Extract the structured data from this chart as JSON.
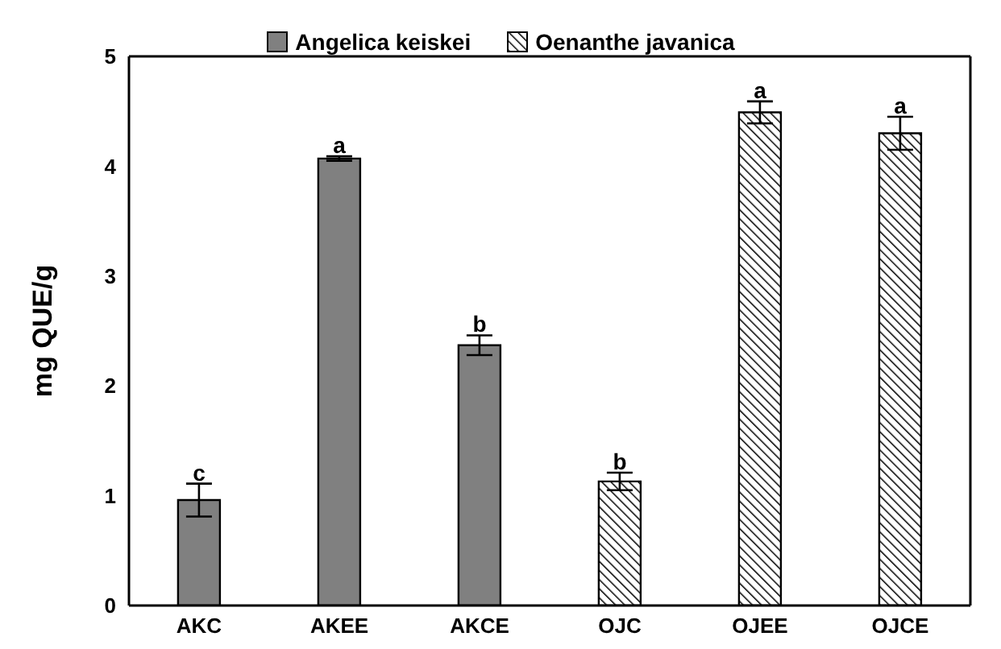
{
  "chart_data": {
    "type": "bar",
    "ylabel": "mg QUE/g",
    "categories": [
      "AKC",
      "AKEE",
      "AKCE",
      "OJC",
      "OJEE",
      "OJCE"
    ],
    "series": [
      {
        "name": "Angelica keiskei",
        "color": "#808080",
        "values": [
          0.96,
          4.07,
          2.37,
          null,
          null,
          null
        ],
        "errors": [
          0.15,
          0.02,
          0.09,
          null,
          null,
          null
        ]
      },
      {
        "name": "Oenanthe javanica",
        "color": "#000000",
        "values": [
          null,
          null,
          null,
          1.13,
          4.49,
          4.3
        ],
        "errors": [
          null,
          null,
          null,
          0.08,
          0.1,
          0.15
        ]
      }
    ],
    "ylim": [
      0,
      5
    ],
    "yticks": [
      0,
      1,
      2,
      3,
      4,
      5
    ],
    "grid": false,
    "legend": "top",
    "annotations": [
      {
        "text": "c",
        "x": "AKC",
        "y": 1.11
      },
      {
        "text": "a",
        "x": "AKEE",
        "y": 4.09
      },
      {
        "text": "b",
        "x": "AKCE",
        "y": 2.46
      },
      {
        "text": "b",
        "x": "OJC",
        "y": 1.21
      },
      {
        "text": "a",
        "x": "OJEE",
        "y": 4.59
      },
      {
        "text": "a",
        "x": "OJCE",
        "y": 4.45
      }
    ]
  }
}
